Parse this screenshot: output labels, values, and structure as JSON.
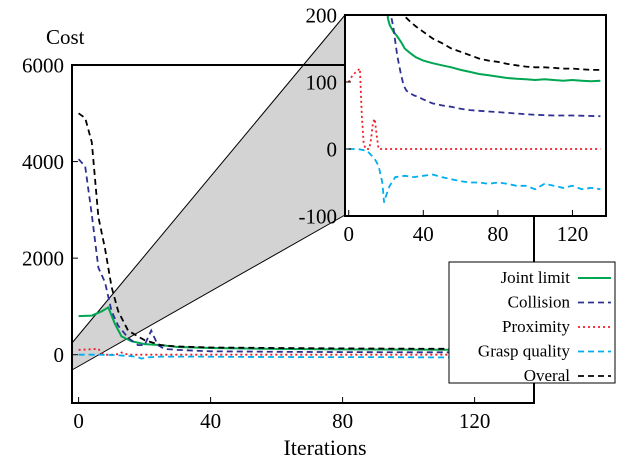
{
  "chart_data": [
    {
      "type": "line",
      "xlabel": "Iterations",
      "ylabel": "Cost",
      "xlim": [
        -2,
        138
      ],
      "ylim": [
        -1000,
        6000
      ],
      "xticks": [
        0,
        40,
        80,
        120
      ],
      "yticks": [
        0,
        2000,
        4000,
        6000
      ],
      "grid": false,
      "legend": "bottom-right",
      "series": [
        {
          "name": "Joint limit",
          "color": "#00a651",
          "dash": "solid",
          "points": [
            [
              0,
              800
            ],
            [
              4,
              810
            ],
            [
              7,
              900
            ],
            [
              9,
              980
            ],
            [
              11,
              640
            ],
            [
              13,
              380
            ],
            [
              16,
              280
            ],
            [
              20,
              220
            ],
            [
              25,
              200
            ],
            [
              30,
              160
            ],
            [
              40,
              140
            ],
            [
              60,
              120
            ],
            [
              80,
              110
            ],
            [
              100,
              105
            ],
            [
              120,
              100
            ],
            [
              135,
              100
            ]
          ]
        },
        {
          "name": "Collision",
          "color": "#2e3192",
          "dash": "dashed",
          "points": [
            [
              0,
              4050
            ],
            [
              2,
              3900
            ],
            [
              4,
              2900
            ],
            [
              6,
              1800
            ],
            [
              8,
              1500
            ],
            [
              10,
              900
            ],
            [
              12,
              600
            ],
            [
              15,
              350
            ],
            [
              18,
              200
            ],
            [
              20,
              200
            ],
            [
              22,
              500
            ],
            [
              24,
              200
            ],
            [
              26,
              120
            ],
            [
              30,
              100
            ],
            [
              40,
              70
            ],
            [
              60,
              60
            ],
            [
              80,
              55
            ],
            [
              100,
              50
            ],
            [
              120,
              50
            ],
            [
              135,
              50
            ]
          ]
        },
        {
          "name": "Proximity",
          "color": "#ed1c24",
          "dash": "dotted",
          "points": [
            [
              0,
              100
            ],
            [
              3,
              110
            ],
            [
              6,
              120
            ],
            [
              7,
              30
            ],
            [
              8,
              0
            ],
            [
              10,
              0
            ],
            [
              12,
              10
            ],
            [
              13,
              45
            ],
            [
              15,
              0
            ],
            [
              135,
              0
            ]
          ]
        },
        {
          "name": "Grasp quality",
          "color": "#00aeef",
          "dash": "dashed",
          "points": [
            [
              0,
              0
            ],
            [
              5,
              0
            ],
            [
              10,
              -5
            ],
            [
              14,
              -20
            ],
            [
              16,
              -30
            ],
            [
              18,
              -50
            ],
            [
              19,
              -80
            ],
            [
              21,
              -55
            ],
            [
              25,
              -40
            ],
            [
              35,
              -40
            ],
            [
              50,
              -45
            ],
            [
              70,
              -50
            ],
            [
              90,
              -50
            ],
            [
              110,
              -55
            ],
            [
              125,
              -55
            ],
            [
              135,
              -60
            ]
          ]
        },
        {
          "name": "Overal",
          "color": "#000000",
          "dash": "dashed",
          "points": [
            [
              0,
              5000
            ],
            [
              2,
              4900
            ],
            [
              4,
              4400
            ],
            [
              6,
              2850
            ],
            [
              8,
              2200
            ],
            [
              10,
              1400
            ],
            [
              12,
              900
            ],
            [
              15,
              500
            ],
            [
              18,
              380
            ],
            [
              20,
              300
            ],
            [
              25,
              200
            ],
            [
              30,
              170
            ],
            [
              40,
              150
            ],
            [
              60,
              140
            ],
            [
              80,
              130
            ],
            [
              100,
              125
            ],
            [
              120,
              120
            ],
            [
              135,
              120
            ]
          ]
        }
      ]
    },
    {
      "type": "line",
      "panel": "inset",
      "xlim": [
        -2,
        138
      ],
      "ylim": [
        -100,
        200
      ],
      "xticks": [
        0,
        40,
        80,
        120
      ],
      "yticks": [
        -100,
        0,
        100,
        200
      ],
      "grid": false,
      "series": [
        {
          "name": "Joint limit",
          "color": "#00a651",
          "dash": "solid",
          "points": [
            [
              20,
              240
            ],
            [
              21,
              195
            ],
            [
              22,
              185
            ],
            [
              24,
              175
            ],
            [
              26,
              168
            ],
            [
              28,
              160
            ],
            [
              30,
              150
            ],
            [
              33,
              143
            ],
            [
              36,
              137
            ],
            [
              40,
              132
            ],
            [
              45,
              128
            ],
            [
              50,
              125
            ],
            [
              55,
              122
            ],
            [
              60,
              118
            ],
            [
              65,
              115
            ],
            [
              70,
              112
            ],
            [
              75,
              110
            ],
            [
              80,
              108
            ],
            [
              85,
              106
            ],
            [
              90,
              105
            ],
            [
              95,
              104
            ],
            [
              100,
              103
            ],
            [
              105,
              104
            ],
            [
              110,
              103
            ],
            [
              115,
              102
            ],
            [
              120,
              103
            ],
            [
              125,
              102
            ],
            [
              130,
              101
            ],
            [
              135,
              102
            ]
          ]
        },
        {
          "name": "Collision",
          "color": "#2e3192",
          "dash": "dashed",
          "points": [
            [
              22,
              240
            ],
            [
              23,
              195
            ],
            [
              24,
              180
            ],
            [
              25,
              160
            ],
            [
              26,
              140
            ],
            [
              27,
              125
            ],
            [
              28,
              112
            ],
            [
              29,
              100
            ],
            [
              30,
              92
            ],
            [
              31,
              87
            ],
            [
              33,
              83
            ],
            [
              35,
              80
            ],
            [
              37,
              78
            ],
            [
              40,
              74
            ],
            [
              45,
              68
            ],
            [
              50,
              65
            ],
            [
              55,
              63
            ],
            [
              60,
              60
            ],
            [
              65,
              58
            ],
            [
              70,
              57
            ],
            [
              75,
              56
            ],
            [
              80,
              55
            ],
            [
              85,
              54
            ],
            [
              90,
              53
            ],
            [
              95,
              52
            ],
            [
              100,
              51
            ],
            [
              110,
              50
            ],
            [
              120,
              50
            ],
            [
              135,
              49
            ]
          ]
        },
        {
          "name": "Proximity",
          "color": "#ed1c24",
          "dash": "dotted",
          "points": [
            [
              0,
              100
            ],
            [
              2,
              110
            ],
            [
              4,
              115
            ],
            [
              6,
              120
            ],
            [
              7,
              50
            ],
            [
              8,
              10
            ],
            [
              9,
              0
            ],
            [
              11,
              0
            ],
            [
              12,
              15
            ],
            [
              13,
              40
            ],
            [
              14,
              45
            ],
            [
              15,
              20
            ],
            [
              16,
              0
            ],
            [
              135,
              0
            ]
          ]
        },
        {
          "name": "Grasp quality",
          "color": "#00aeef",
          "dash": "dashed",
          "points": [
            [
              0,
              0
            ],
            [
              5,
              0
            ],
            [
              10,
              -3
            ],
            [
              14,
              -15
            ],
            [
              16,
              -25
            ],
            [
              18,
              -50
            ],
            [
              19,
              -80
            ],
            [
              20,
              -70
            ],
            [
              22,
              -55
            ],
            [
              25,
              -42
            ],
            [
              30,
              -40
            ],
            [
              35,
              -42
            ],
            [
              40,
              -40
            ],
            [
              45,
              -38
            ],
            [
              50,
              -42
            ],
            [
              55,
              -45
            ],
            [
              60,
              -48
            ],
            [
              65,
              -50
            ],
            [
              70,
              -50
            ],
            [
              75,
              -52
            ],
            [
              80,
              -50
            ],
            [
              85,
              -52
            ],
            [
              90,
              -55
            ],
            [
              95,
              -55
            ],
            [
              100,
              -60
            ],
            [
              105,
              -52
            ],
            [
              110,
              -55
            ],
            [
              115,
              -58
            ],
            [
              120,
              -55
            ],
            [
              125,
              -60
            ],
            [
              130,
              -58
            ],
            [
              135,
              -60
            ]
          ]
        },
        {
          "name": "Overal",
          "color": "#000000",
          "dash": "dashed",
          "points": [
            [
              28,
              240
            ],
            [
              29,
              205
            ],
            [
              30,
              198
            ],
            [
              33,
              190
            ],
            [
              36,
              183
            ],
            [
              40,
              175
            ],
            [
              45,
              165
            ],
            [
              50,
              158
            ],
            [
              55,
              150
            ],
            [
              60,
              145
            ],
            [
              65,
              140
            ],
            [
              70,
              135
            ],
            [
              75,
              132
            ],
            [
              80,
              130
            ],
            [
              85,
              127
            ],
            [
              90,
              125
            ],
            [
              95,
              123
            ],
            [
              100,
              122
            ],
            [
              105,
              122
            ],
            [
              110,
              121
            ],
            [
              115,
              120
            ],
            [
              120,
              120
            ],
            [
              125,
              119
            ],
            [
              130,
              118
            ],
            [
              135,
              118
            ]
          ]
        }
      ]
    }
  ]
}
